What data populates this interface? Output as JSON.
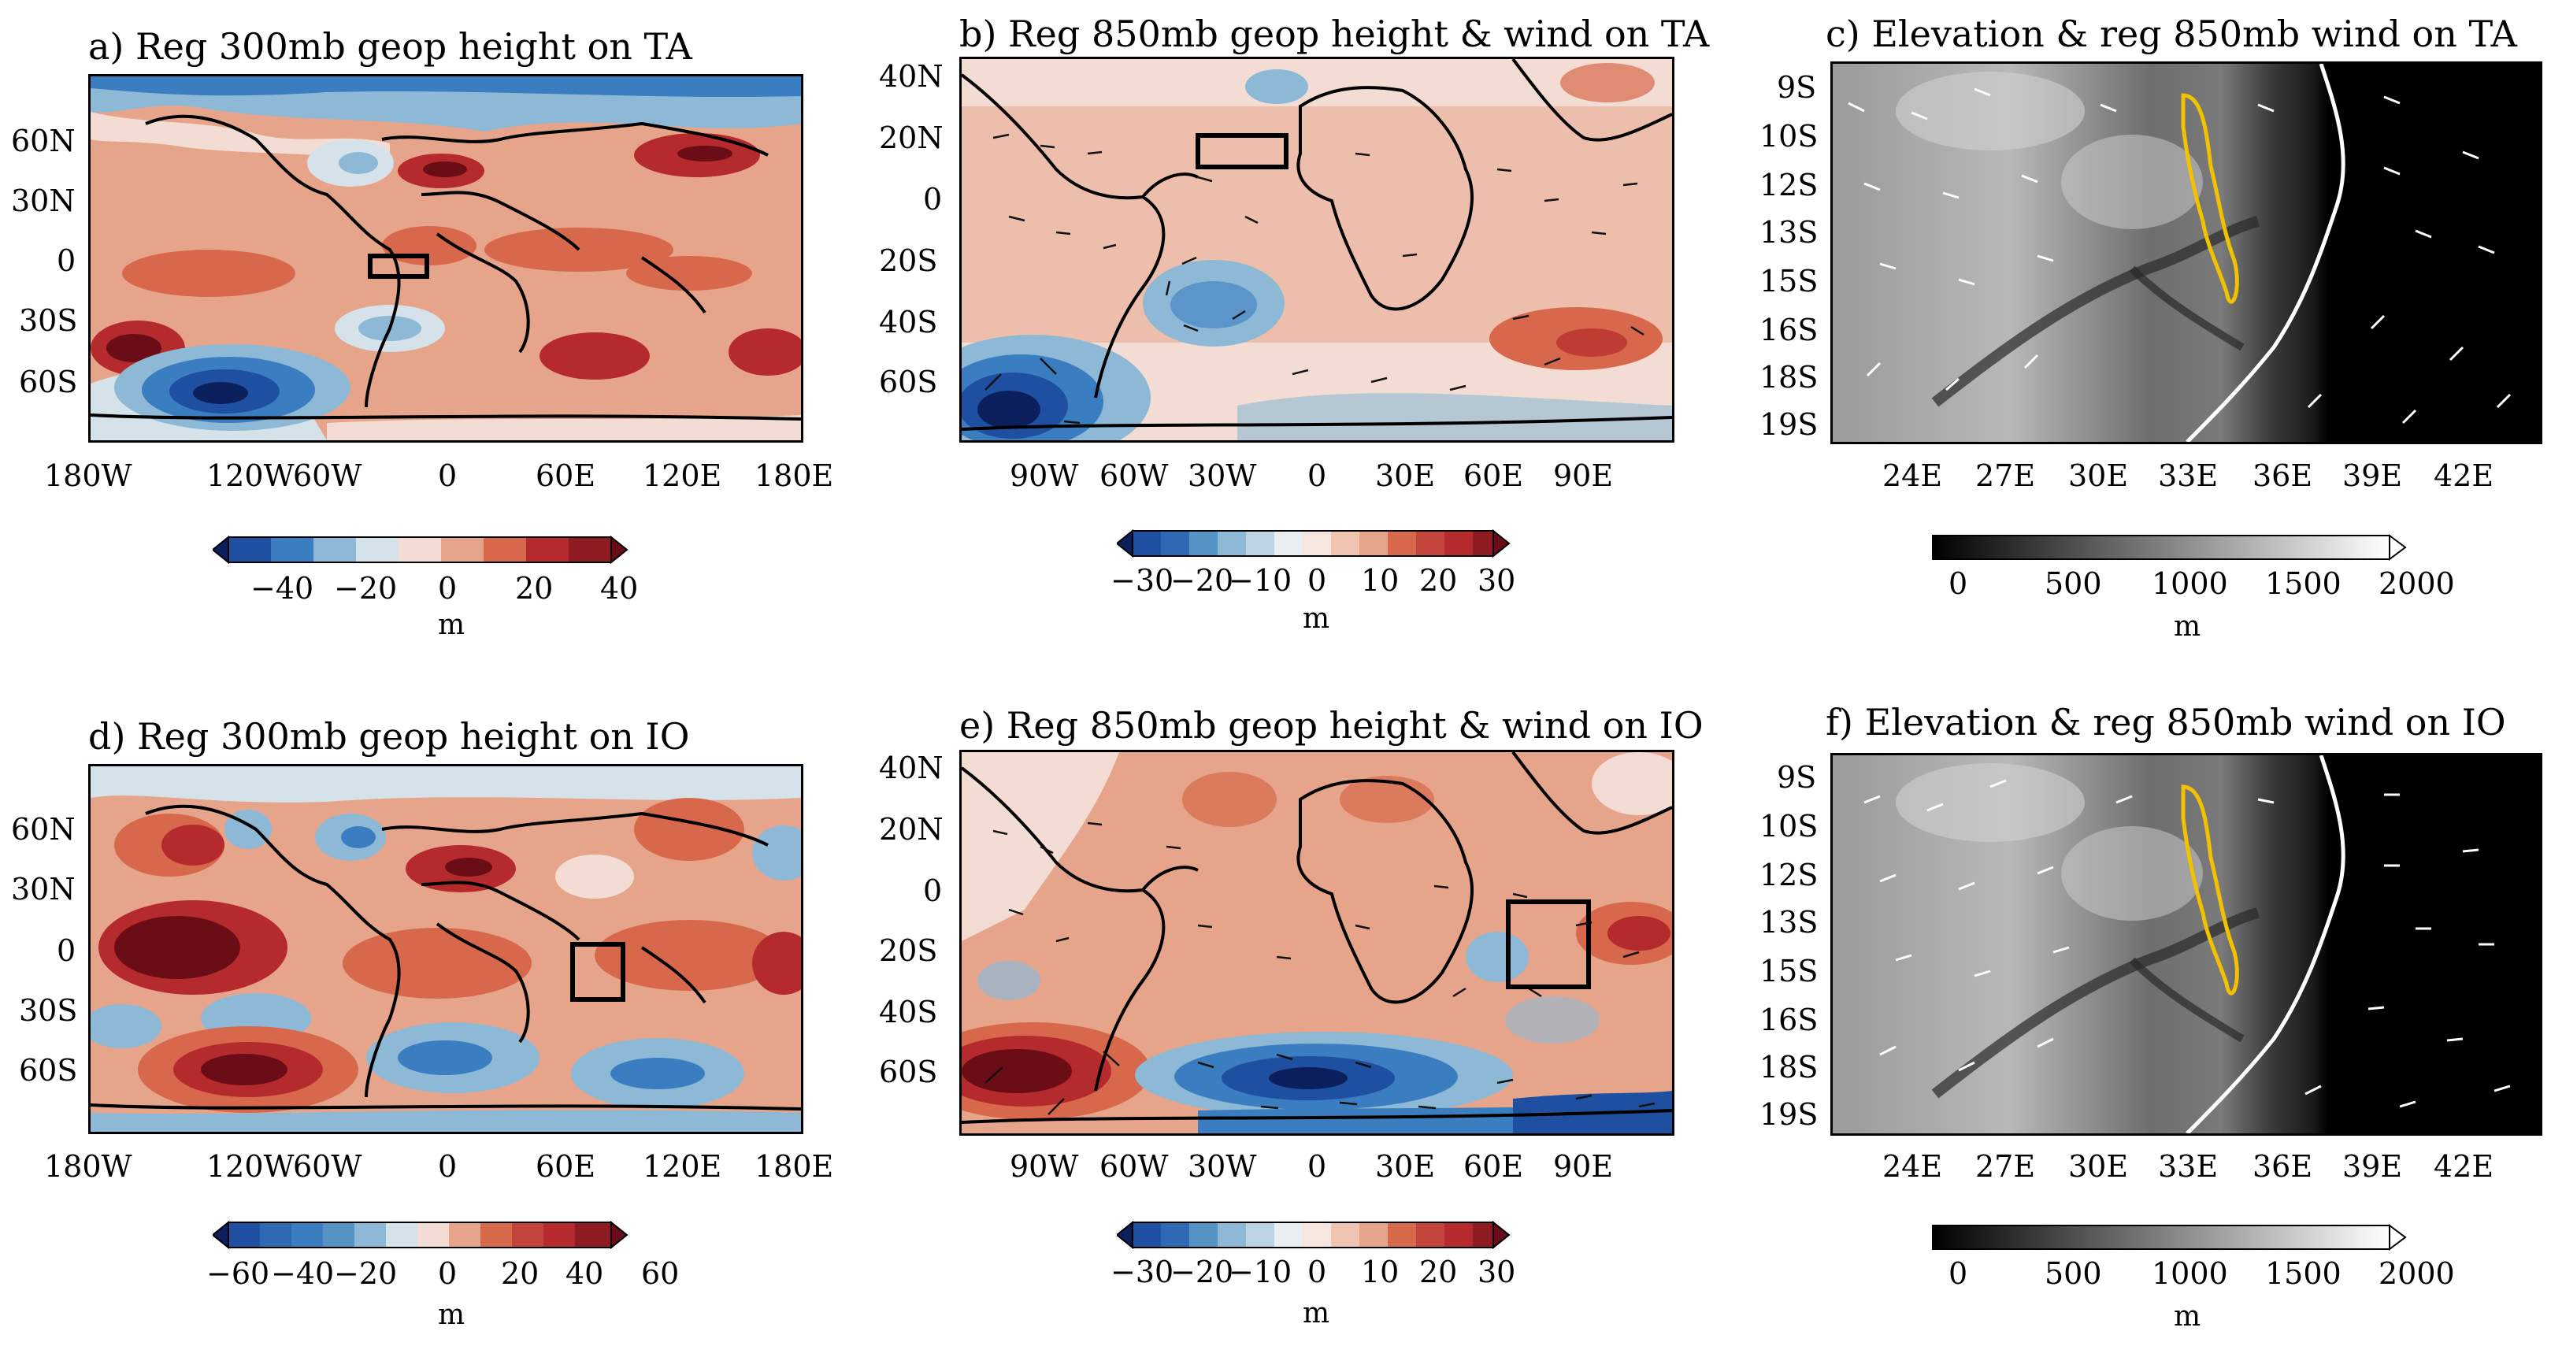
{
  "panels": {
    "a": {
      "title": "a) Reg 300mb geop height on TA",
      "lat_labels": [
        "60N",
        "30N",
        "0",
        "30S",
        "60S"
      ],
      "lon_labels": [
        "180W",
        "120W",
        "60W",
        "0",
        "60E",
        "120E",
        "180E"
      ],
      "colorbar": {
        "ticks": [
          "−40",
          "−20",
          "0",
          "20",
          "40"
        ],
        "unit": "m"
      }
    },
    "b": {
      "title": "b) Reg 850mb geop height & wind on TA",
      "lat_labels": [
        "40N",
        "20N",
        "0",
        "20S",
        "40S",
        "60S"
      ],
      "lon_labels": [
        "90W",
        "60W",
        "30W",
        "0",
        "30E",
        "60E",
        "90E"
      ],
      "colorbar": {
        "ticks": [
          "−30",
          "−20",
          "−10",
          "0",
          "10",
          "20",
          "30"
        ],
        "unit": "m"
      }
    },
    "c": {
      "title": "c) Elevation & reg 850mb wind on TA",
      "lat_labels": [
        "9S",
        "10S",
        "12S",
        "13S",
        "15S",
        "16S",
        "18S",
        "19S"
      ],
      "lon_labels": [
        "24E",
        "27E",
        "30E",
        "33E",
        "36E",
        "39E",
        "42E"
      ],
      "colorbar": {
        "ticks": [
          "0",
          "500",
          "1000",
          "1500",
          "2000"
        ],
        "unit": "m"
      }
    },
    "d": {
      "title": "d) Reg 300mb geop height on IO",
      "lat_labels": [
        "60N",
        "30N",
        "0",
        "30S",
        "60S"
      ],
      "lon_labels": [
        "180W",
        "120W",
        "60W",
        "0",
        "60E",
        "120E",
        "180E"
      ],
      "colorbar": {
        "ticks": [
          "−60",
          "−40",
          "−20",
          "0",
          "20",
          "40",
          "60"
        ],
        "unit": "m"
      }
    },
    "e": {
      "title": "e) Reg 850mb geop height & wind on IO",
      "lat_labels": [
        "40N",
        "20N",
        "0",
        "20S",
        "40S",
        "60S"
      ],
      "lon_labels": [
        "90W",
        "60W",
        "30W",
        "0",
        "30E",
        "60E",
        "90E"
      ],
      "colorbar": {
        "ticks": [
          "−30",
          "−20",
          "−10",
          "0",
          "10",
          "20",
          "30"
        ],
        "unit": "m"
      }
    },
    "f": {
      "title": "f) Elevation & reg 850mb wind on IO",
      "lat_labels": [
        "9S",
        "10S",
        "12S",
        "13S",
        "15S",
        "16S",
        "18S",
        "19S"
      ],
      "lon_labels": [
        "24E",
        "27E",
        "30E",
        "33E",
        "36E",
        "39E",
        "42E"
      ],
      "colorbar": {
        "ticks": [
          "0",
          "500",
          "1000",
          "1500",
          "2000"
        ],
        "unit": "m"
      }
    }
  },
  "colors": {
    "diverging": [
      "#0b1f5c",
      "#1f4fa0",
      "#3a7dc0",
      "#8db9d6",
      "#d6e2ea",
      "#f3dcd3",
      "#e6a58a",
      "#d7684c",
      "#b52a2c",
      "#6b0d16"
    ],
    "elevation_low": "#000000",
    "elevation_high": "#ffffff",
    "lake_outline": "#f2c200",
    "coast": "#000000",
    "wind_arrow_dark": "#111111",
    "wind_arrow_light": "#ffffff"
  }
}
